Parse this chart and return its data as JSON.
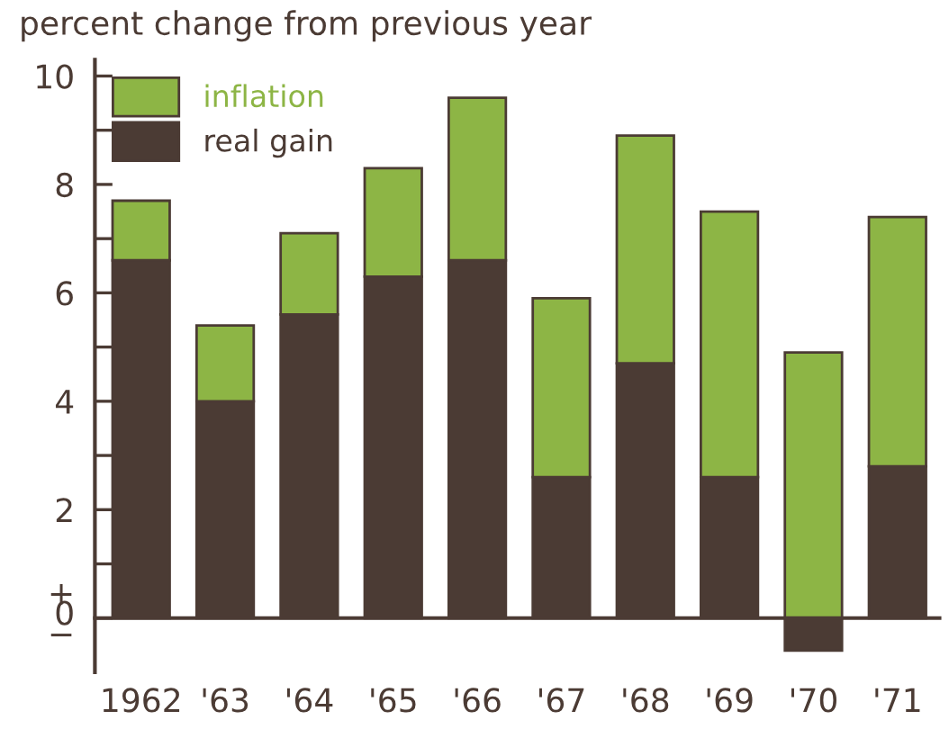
{
  "chart_data": {
    "type": "bar",
    "title": "percent change from previous year",
    "stacked": true,
    "categories": [
      "1962",
      "'63",
      "'64",
      "'65",
      "'66",
      "'67",
      "'68",
      "'69",
      "'70",
      "'71"
    ],
    "series": [
      {
        "name": "real gain",
        "color": "#4b3b34",
        "values": [
          6.6,
          4.0,
          5.6,
          6.3,
          6.6,
          2.6,
          4.7,
          2.6,
          -0.6,
          2.8
        ]
      },
      {
        "name": "inflation",
        "color": "#8db545",
        "values": [
          1.1,
          1.4,
          1.5,
          2.0,
          3.0,
          3.3,
          4.2,
          4.9,
          4.9,
          4.6
        ]
      }
    ],
    "ylim": [
      -1,
      10.3
    ],
    "yticks": [
      {
        "value": 0,
        "label": "+\n0\n−"
      },
      {
        "value": 1,
        "label": null
      },
      2,
      {
        "value": 3,
        "label": null
      },
      4,
      {
        "value": 5,
        "label": null
      },
      6,
      {
        "value": 7,
        "label": null
      },
      8,
      {
        "value": 9,
        "label": null
      },
      10
    ],
    "legend": "top left",
    "grid": false
  }
}
